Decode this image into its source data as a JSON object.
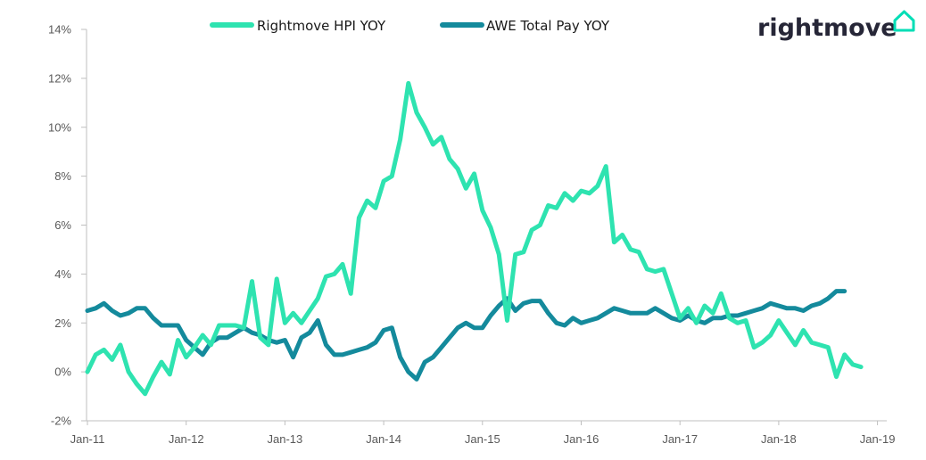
{
  "brand": {
    "name": "rightmove",
    "logo_icon": "house-outline-icon",
    "logo_color": "#00deb6",
    "text_color": "#262637"
  },
  "colors": {
    "hpi": "#2ee3b0",
    "awe": "#148a9c",
    "axis": "#bfbfbf",
    "tick_text": "#595959"
  },
  "chart_data": {
    "type": "line",
    "title": "",
    "xlabel": "",
    "ylabel": "",
    "ylim": [
      -2,
      14
    ],
    "y_ticks": [
      -2,
      0,
      2,
      4,
      6,
      8,
      10,
      12,
      14
    ],
    "y_tick_labels": [
      "-2%",
      "0%",
      "2%",
      "4%",
      "6%",
      "8%",
      "10%",
      "12%",
      "14%"
    ],
    "x_tick_labels": [
      "Jan-11",
      "Jan-12",
      "Jan-13",
      "Jan-14",
      "Jan-15",
      "Jan-16",
      "Jan-17",
      "Jan-18",
      "Jan-19"
    ],
    "x_start": "Jan-11",
    "grid": false,
    "legend_position": "top-center",
    "series": [
      {
        "name": "Rightmove HPI YOY",
        "color": "#2ee3b0",
        "values": [
          0.0,
          0.7,
          0.9,
          0.5,
          1.1,
          0.0,
          -0.5,
          -0.9,
          -0.2,
          0.4,
          -0.1,
          1.3,
          0.6,
          1.0,
          1.5,
          1.1,
          1.9,
          1.9,
          1.9,
          1.8,
          3.7,
          1.4,
          1.1,
          3.8,
          2.0,
          2.4,
          2.0,
          2.5,
          3.0,
          3.9,
          4.0,
          4.4,
          3.2,
          6.3,
          7.0,
          6.7,
          7.8,
          8.0,
          9.5,
          11.8,
          10.6,
          10.0,
          9.3,
          9.6,
          8.7,
          8.3,
          7.5,
          8.1,
          6.6,
          5.9,
          4.8,
          2.1,
          4.8,
          4.9,
          5.8,
          6.0,
          6.8,
          6.7,
          7.3,
          7.0,
          7.4,
          7.3,
          7.6,
          8.4,
          5.3,
          5.6,
          5.0,
          4.9,
          4.2,
          4.1,
          4.2,
          3.2,
          2.2,
          2.6,
          2.0,
          2.7,
          2.4,
          3.2,
          2.2,
          2.0,
          2.1,
          1.0,
          1.2,
          1.5,
          2.1,
          1.6,
          1.1,
          1.7,
          1.2,
          1.1,
          1.0,
          -0.2,
          0.7,
          0.3,
          0.2
        ]
      },
      {
        "name": "AWE Total Pay YOY",
        "color": "#148a9c",
        "values": [
          2.5,
          2.6,
          2.8,
          2.5,
          2.3,
          2.4,
          2.6,
          2.6,
          2.2,
          1.9,
          1.9,
          1.9,
          1.3,
          1.0,
          0.7,
          1.2,
          1.4,
          1.4,
          1.6,
          1.8,
          1.6,
          1.5,
          1.3,
          1.2,
          1.3,
          0.6,
          1.4,
          1.6,
          2.1,
          1.1,
          0.7,
          0.7,
          0.8,
          0.9,
          1.0,
          1.2,
          1.7,
          1.8,
          0.6,
          0.0,
          -0.3,
          0.4,
          0.6,
          1.0,
          1.4,
          1.8,
          2.0,
          1.8,
          1.8,
          2.3,
          2.7,
          3.0,
          2.5,
          2.8,
          2.9,
          2.9,
          2.4,
          2.0,
          1.9,
          2.2,
          2.0,
          2.1,
          2.2,
          2.4,
          2.6,
          2.5,
          2.4,
          2.4,
          2.4,
          2.6,
          2.4,
          2.2,
          2.1,
          2.3,
          2.1,
          2.0,
          2.2,
          2.2,
          2.3,
          2.3,
          2.4,
          2.5,
          2.6,
          2.8,
          2.7,
          2.6,
          2.6,
          2.5,
          2.7,
          2.8,
          3.0,
          3.3,
          3.3
        ]
      }
    ]
  }
}
